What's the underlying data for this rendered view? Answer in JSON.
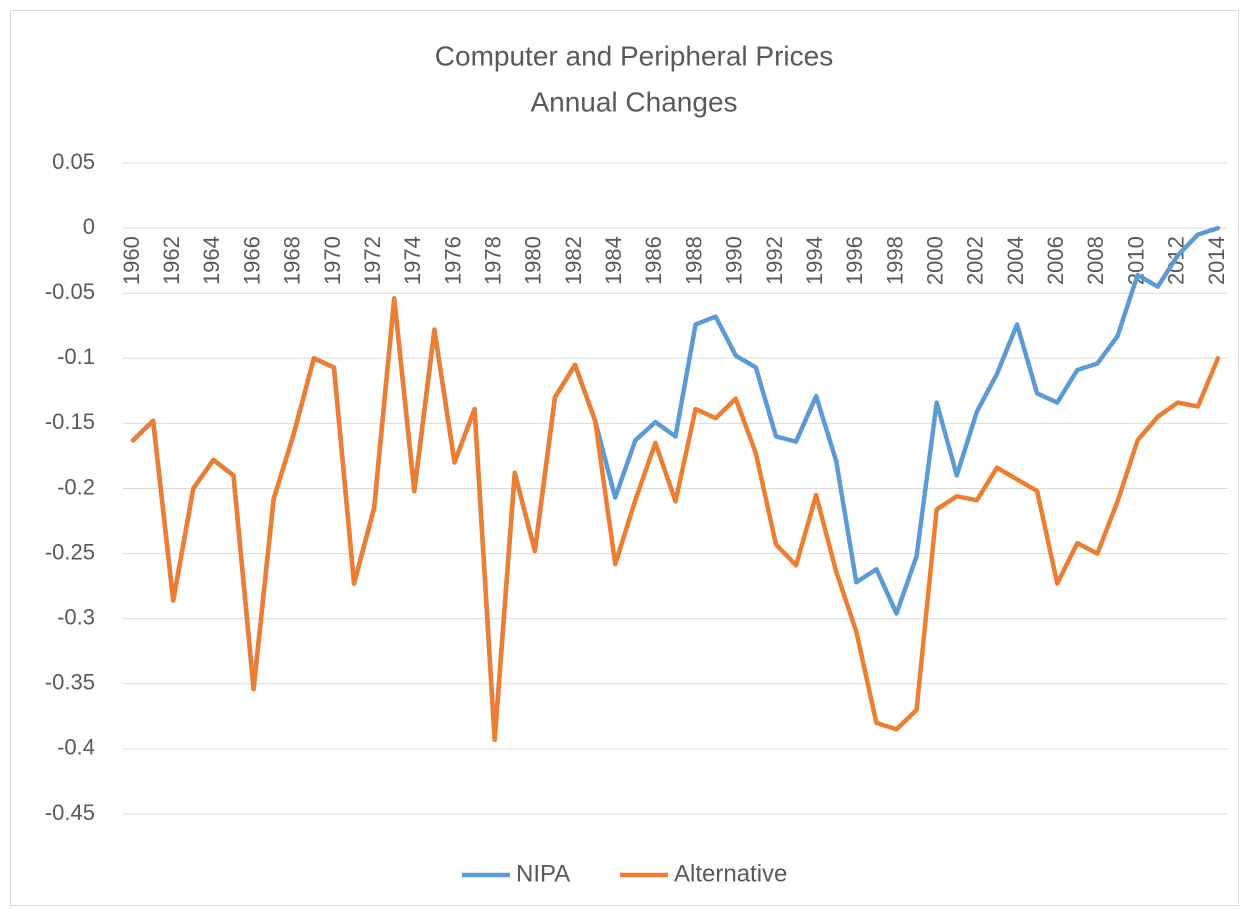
{
  "chart_data": {
    "type": "line",
    "title": "Computer and Peripheral Prices",
    "subtitle": "Annual Changes",
    "categories": [
      "1960",
      null,
      "1962",
      null,
      "1964",
      null,
      "1966",
      null,
      "1968",
      null,
      "1970",
      null,
      "1972",
      null,
      "1974",
      null,
      "1976",
      null,
      "1978",
      null,
      "1980",
      null,
      "1982",
      null,
      "1984",
      null,
      "1986",
      null,
      "1988",
      null,
      "1990",
      null,
      "1992",
      null,
      "1994",
      null,
      "1996",
      null,
      "1998",
      null,
      "2000",
      null,
      "2002",
      null,
      "2004",
      null,
      "2006",
      null,
      "2008",
      null,
      "2010",
      null,
      "2012",
      null,
      "2014"
    ],
    "series": [
      {
        "name": "NIPA",
        "color": "#5b9bd5",
        "values": [
          -0.163,
          -0.148,
          -0.286,
          -0.2,
          -0.178,
          -0.19,
          -0.354,
          -0.208,
          -0.158,
          -0.1,
          -0.107,
          -0.273,
          -0.215,
          -0.054,
          -0.202,
          -0.078,
          -0.18,
          -0.139,
          -0.393,
          -0.188,
          -0.248,
          -0.13,
          -0.105,
          -0.148,
          -0.207,
          -0.163,
          -0.149,
          -0.16,
          -0.074,
          -0.068,
          -0.098,
          -0.107,
          -0.16,
          -0.164,
          -0.129,
          -0.179,
          -0.272,
          -0.262,
          -0.296,
          -0.252,
          -0.134,
          -0.19,
          -0.141,
          -0.112,
          -0.074,
          -0.127,
          -0.134,
          -0.109,
          -0.104,
          -0.083,
          -0.036,
          -0.045,
          -0.021,
          -0.005,
          0
        ]
      },
      {
        "name": "Alternative",
        "color": "#ed7d31",
        "values": [
          -0.163,
          -0.148,
          -0.286,
          -0.2,
          -0.178,
          -0.19,
          -0.354,
          -0.208,
          -0.158,
          -0.1,
          -0.107,
          -0.273,
          -0.215,
          -0.054,
          -0.202,
          -0.078,
          -0.18,
          -0.139,
          -0.393,
          -0.188,
          -0.248,
          -0.13,
          -0.105,
          -0.148,
          -0.258,
          -0.209,
          -0.165,
          -0.21,
          -0.139,
          -0.146,
          -0.131,
          -0.173,
          -0.243,
          -0.259,
          -0.205,
          -0.264,
          -0.31,
          -0.38,
          -0.385,
          -0.37,
          -0.216,
          -0.206,
          -0.209,
          -0.184,
          -0.193,
          -0.202,
          -0.273,
          -0.242,
          -0.25,
          -0.21,
          -0.163,
          -0.145,
          -0.134,
          -0.137,
          -0.1
        ]
      }
    ],
    "ylim": [
      -0.45,
      0.05
    ],
    "yticks": [
      0.05,
      0,
      -0.05,
      -0.1,
      -0.15,
      -0.2,
      -0.25,
      -0.3,
      -0.35,
      -0.4,
      -0.45
    ],
    "grid": true,
    "legend": "bottom"
  }
}
